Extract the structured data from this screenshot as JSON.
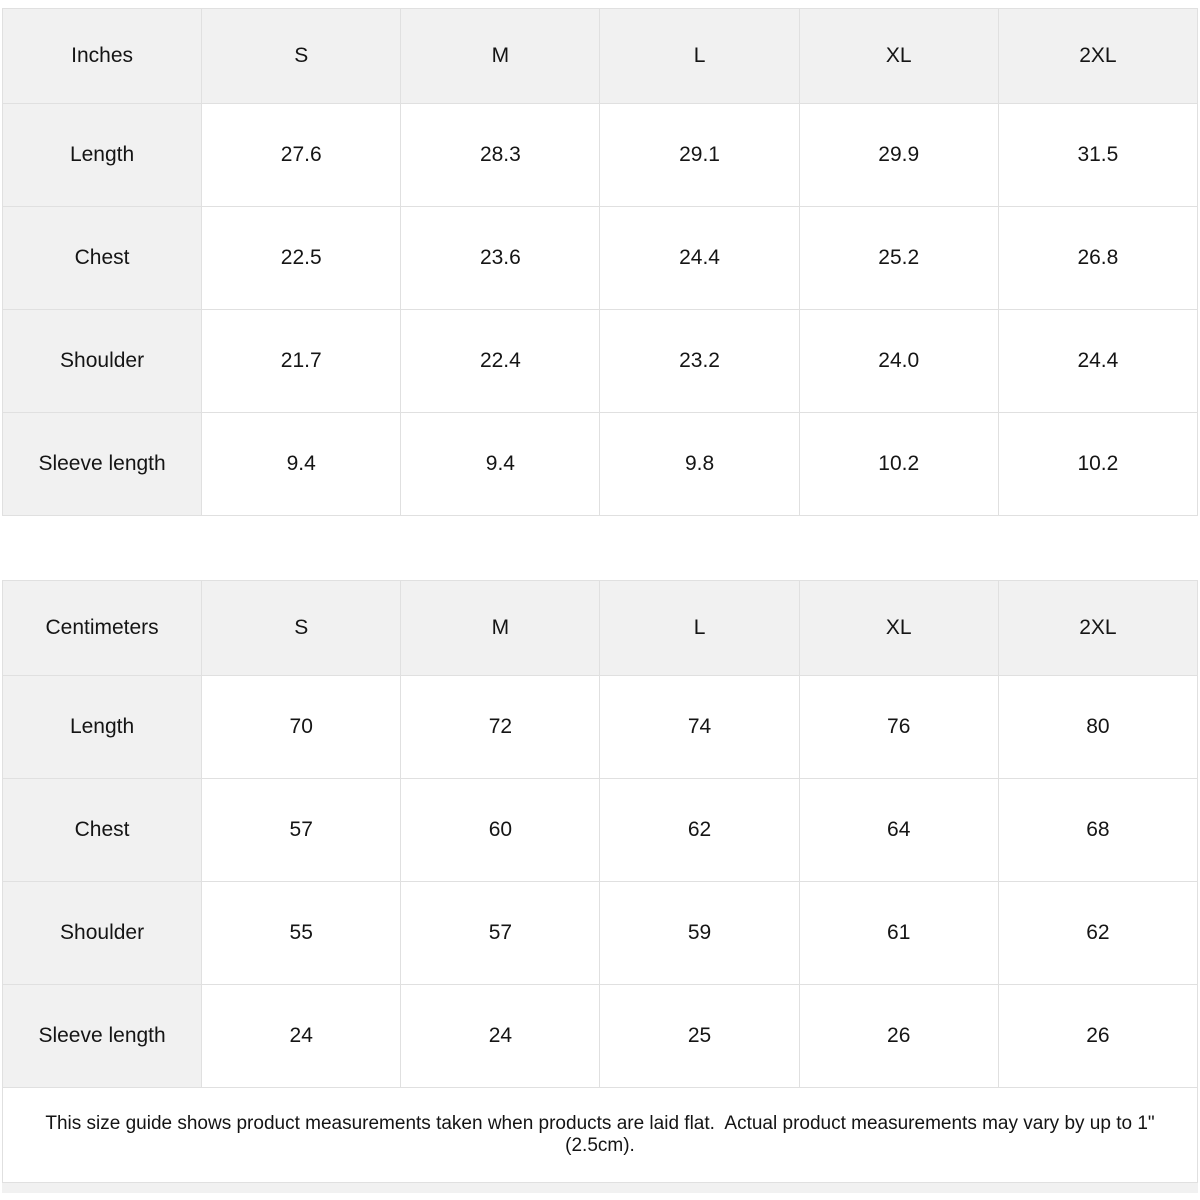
{
  "colors": {
    "header_bg": "#f1f1f1",
    "cell_bg": "#ffffff",
    "border": "#e0e0e0",
    "text": "#151515",
    "bottom_strip_bg": "#f1f1f1"
  },
  "size_tables": [
    {
      "unit_label": "Inches",
      "sizes": [
        "S",
        "M",
        "L",
        "XL",
        "2XL"
      ],
      "rows": [
        {
          "label": "Length",
          "values": [
            "27.6",
            "28.3",
            "29.1",
            "29.9",
            "31.5"
          ]
        },
        {
          "label": "Chest",
          "values": [
            "22.5",
            "23.6",
            "24.4",
            "25.2",
            "26.8"
          ]
        },
        {
          "label": "Shoulder",
          "values": [
            "21.7",
            "22.4",
            "23.2",
            "24.0",
            "24.4"
          ]
        },
        {
          "label": "Sleeve length",
          "values": [
            "9.4",
            "9.4",
            "9.8",
            "10.2",
            "10.2"
          ]
        }
      ]
    },
    {
      "unit_label": "Centimeters",
      "sizes": [
        "S",
        "M",
        "L",
        "XL",
        "2XL"
      ],
      "rows": [
        {
          "label": "Length",
          "values": [
            "70",
            "72",
            "74",
            "76",
            "80"
          ]
        },
        {
          "label": "Chest",
          "values": [
            "57",
            "60",
            "62",
            "64",
            "68"
          ]
        },
        {
          "label": "Shoulder",
          "values": [
            "55",
            "57",
            "59",
            "61",
            "62"
          ]
        },
        {
          "label": "Sleeve length",
          "values": [
            "24",
            "24",
            "25",
            "26",
            "26"
          ]
        }
      ]
    }
  ],
  "footer": {
    "note": "This size guide shows product measurements taken when products are laid flat.  Actual product measurements may vary by up to 1\" (2.5cm)."
  }
}
